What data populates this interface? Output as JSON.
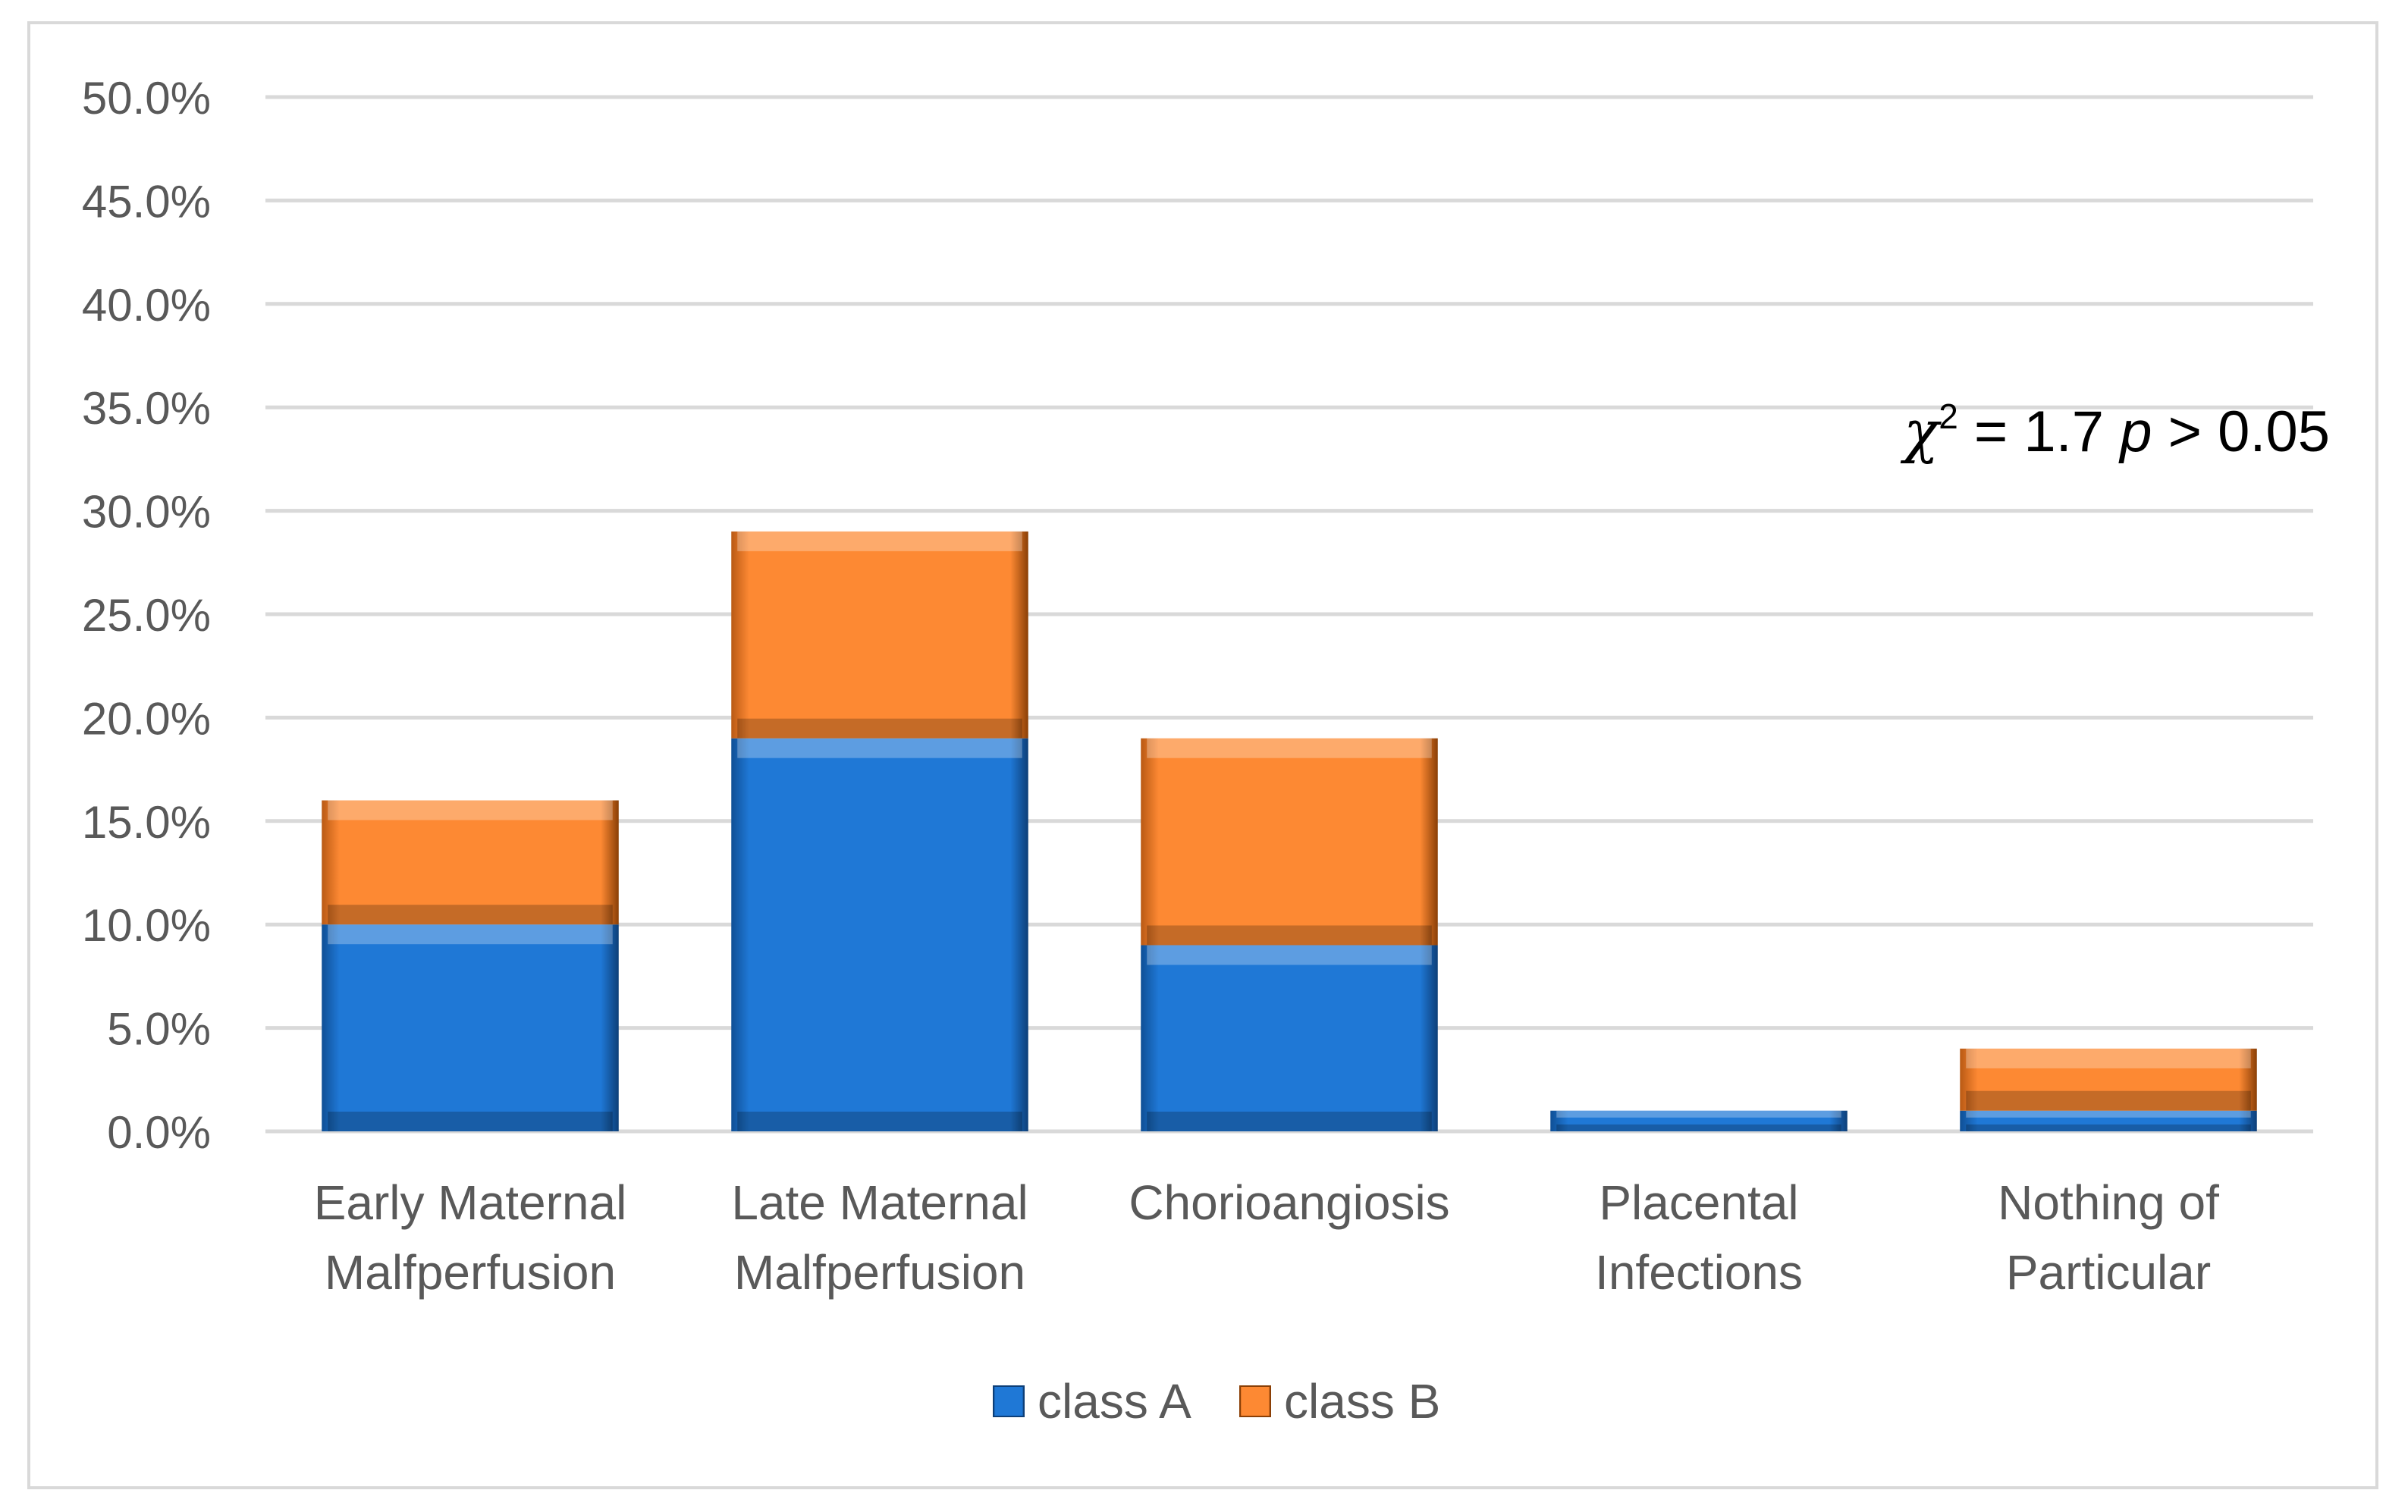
{
  "chart_data": {
    "type": "bar",
    "stacked": true,
    "title": "",
    "xlabel": "",
    "ylabel": "",
    "ylim": [
      0,
      50
    ],
    "y_step": 5,
    "y_tick_labels": [
      "0.0%",
      "5.0%",
      "10.0%",
      "15.0%",
      "20.0%",
      "25.0%",
      "30.0%",
      "35.0%",
      "40.0%",
      "45.0%",
      "50.0%"
    ],
    "categories": [
      [
        "Early Maternal",
        "Malfperfusion"
      ],
      [
        "Late Maternal",
        "Malfperfusion"
      ],
      [
        "Chorioangiosis"
      ],
      [
        "Placental",
        "Infections"
      ],
      [
        "Nothing of",
        "Particular"
      ]
    ],
    "series": [
      {
        "name": "class A",
        "color": "#1f78d6",
        "values": [
          10,
          19,
          9,
          1,
          1
        ]
      },
      {
        "name": "class B",
        "color": "#fd8933",
        "values": [
          6,
          10,
          10,
          0,
          3
        ]
      }
    ],
    "legend_position": "bottom",
    "grid": true,
    "annotation": {
      "chi_symbol": "χ",
      "chi_exponent": "2",
      "chi_value": " = 1.7 ",
      "p_symbol": "p",
      "p_value": " > 0.05"
    }
  }
}
